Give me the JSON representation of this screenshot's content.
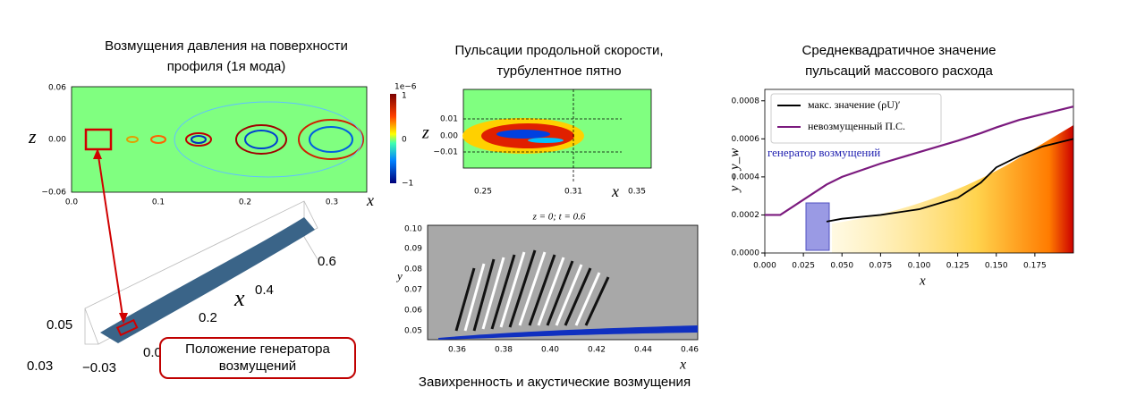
{
  "panels": {
    "surface_pressure": {
      "title": [
        "Возмущения давления на поверхности",
        "профиля (1я мода)"
      ],
      "z_label": "z",
      "x_label": "x",
      "z_ticks": [
        "0.06",
        "0.00",
        "−0.06"
      ],
      "x_ticks": [
        "0.0",
        "0.1",
        "0.2",
        "0.3"
      ],
      "colorbar": {
        "scale": "1e−6",
        "ticks": [
          "1",
          "0",
          "−1"
        ]
      }
    },
    "surface_3d": {
      "x_label": "x",
      "x_ticks": [
        "0.6",
        "0.4",
        "0.2",
        "0.0"
      ],
      "z_ticks": [
        "0.05",
        "0.03",
        "−0.03"
      ],
      "callout": [
        "Положение генератора",
        "возмущений"
      ]
    },
    "turbulent_spot": {
      "title": [
        "Пульсации продольной скорости,",
        "турбулентное пятно"
      ],
      "z_label": "z",
      "z_ticks": [
        "0.01",
        "0.00",
        "−0.01"
      ],
      "x_ticks": [
        "0.25",
        "0.31",
        "0.35"
      ],
      "x_label": "x"
    },
    "vorticity": {
      "subtitle": "z = 0; t = 0.6",
      "y_label": "y",
      "y_ticks": [
        "0.10",
        "0.09",
        "0.08",
        "0.07",
        "0.06",
        "0.05"
      ],
      "x_ticks": [
        "0.36",
        "0.38",
        "0.40",
        "0.42",
        "0.44",
        "0.46"
      ],
      "x_label": "x",
      "caption": "Завихренность и акустические возмущения"
    }
  },
  "chart_data": {
    "type": "line",
    "title": [
      "Среднеквадратичное значение",
      "пульсаций массового расхода"
    ],
    "x_label": "x",
    "y_label": "y − y_w",
    "annotation": "генератор возмущений",
    "x": [
      0,
      0.01,
      0.025,
      0.04,
      0.05,
      0.075,
      0.1,
      0.125,
      0.14,
      0.15,
      0.165,
      0.18,
      0.2
    ],
    "series": [
      {
        "name": "макс. значение (ρU)′",
        "color": "#000000",
        "values": [
          null,
          null,
          null,
          0.000165,
          0.00018,
          0.0002,
          0.00023,
          0.00029,
          0.00037,
          0.00045,
          0.00051,
          0.00056,
          0.0006
        ]
      },
      {
        "name": "невозмущенный П.С.",
        "color": "#7b1a7e",
        "values": [
          0.0002,
          0.0002,
          0.00028,
          0.00036,
          0.0004,
          0.00047,
          0.00053,
          0.00059,
          0.00063,
          0.00066,
          0.0007,
          0.00073,
          0.00077
        ]
      }
    ],
    "xlim": [
      0,
      0.2
    ],
    "ylim": [
      0,
      0.00086
    ],
    "xticks": [
      {
        "value": 0,
        "label": "0.000"
      },
      {
        "value": 0.025,
        "label": "0.025"
      },
      {
        "value": 0.05,
        "label": "0.050"
      },
      {
        "value": 0.075,
        "label": "0.075"
      },
      {
        "value": 0.1,
        "label": "0.100"
      },
      {
        "value": 0.125,
        "label": "0.125"
      },
      {
        "value": 0.15,
        "label": "0.150"
      },
      {
        "value": 0.175,
        "label": "0.175"
      }
    ],
    "yticks": [
      {
        "value": 0,
        "label": "0.0000"
      },
      {
        "value": 0.0002,
        "label": "0.0002"
      },
      {
        "value": 0.0004,
        "label": "0.0004"
      },
      {
        "value": 0.0006,
        "label": "0.0006"
      },
      {
        "value": 0.0008,
        "label": "0.0008"
      }
    ],
    "legend": "upper left"
  }
}
